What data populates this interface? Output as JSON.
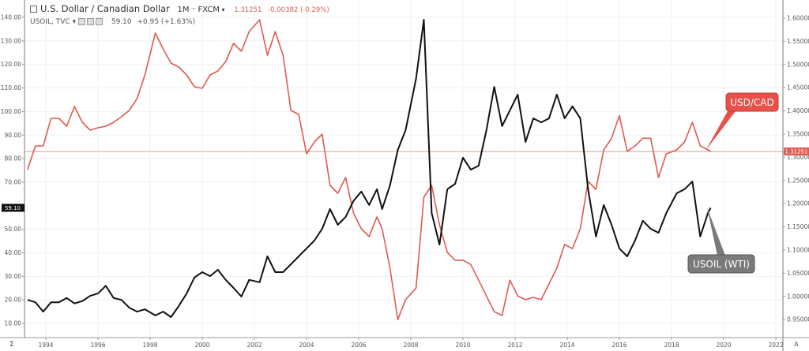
{
  "header": {
    "symbol_title": "U.S. Dollar / Canadian Dollar",
    "interval": "1M",
    "source": "FXCM",
    "price": "1.31251",
    "change": "-0.00382 (-0.29%)",
    "overlay_symbol": "USOIL, TVC",
    "overlay_price": "59.10",
    "overlay_change": "+0.95 (+1.63%)"
  },
  "axis_buttons": {
    "left": "Σ",
    "right": "A"
  },
  "colors": {
    "usdcad": "#e05a4e",
    "usoil": "#111111",
    "usoil_callout": "#7a7a7a",
    "usdcad_callout": "#e8514a"
  },
  "chart_data": {
    "type": "line",
    "x_ticks": [
      "1994",
      "1996",
      "1998",
      "2000",
      "2002",
      "2004",
      "2006",
      "2008",
      "2010",
      "2012",
      "2014",
      "2016",
      "2018",
      "2020",
      "2022"
    ],
    "left_axis": {
      "ticks": [
        "140.00",
        "130.00",
        "120.00",
        "110.00",
        "100.00",
        "90.00",
        "80.00",
        "70.00",
        "50.00",
        "40.00",
        "30.00",
        "20.00",
        "10.00"
      ],
      "range": [
        7,
        142
      ],
      "last_value_label": "59.10"
    },
    "right_axis": {
      "ticks": [
        "1.60000",
        "1.55000",
        "1.50000",
        "1.45000",
        "1.40000",
        "1.35000",
        "1.30000",
        "1.25000",
        "1.20000",
        "1.15000",
        "1.10000",
        "1.05000",
        "1.00000",
        "0.95000"
      ],
      "range": [
        0.91,
        1.615
      ],
      "last_value_label": "1.31251"
    },
    "grid": true,
    "x": [
      1993.3,
      1993.6,
      1993.9,
      1994.2,
      1994.5,
      1994.8,
      1995.1,
      1995.4,
      1995.7,
      1996.0,
      1996.3,
      1996.6,
      1996.9,
      1997.2,
      1997.5,
      1997.8,
      1998.2,
      1998.5,
      1998.8,
      1999.1,
      1999.4,
      1999.7,
      2000.0,
      2000.3,
      2000.6,
      2000.9,
      2001.2,
      2001.5,
      2001.8,
      2002.2,
      2002.5,
      2002.8,
      2003.1,
      2003.4,
      2003.7,
      2004.0,
      2004.3,
      2004.6,
      2004.9,
      2005.2,
      2005.5,
      2005.8,
      2006.1,
      2006.4,
      2006.7,
      2006.9,
      2007.2,
      2007.5,
      2007.8,
      2008.2,
      2008.5,
      2008.8,
      2009.1,
      2009.4,
      2009.7,
      2010.0,
      2010.3,
      2010.6,
      2010.9,
      2011.2,
      2011.5,
      2011.8,
      2012.1,
      2012.4,
      2012.7,
      2013.0,
      2013.3,
      2013.6,
      2013.9,
      2014.2,
      2014.5,
      2014.8,
      2015.1,
      2015.4,
      2015.7,
      2016.0,
      2016.3,
      2016.6,
      2016.9,
      2017.2,
      2017.5,
      2017.8,
      2018.2,
      2018.5,
      2018.8,
      2019.1,
      2019.4,
      2019.5
    ],
    "series": [
      {
        "name": "USD/CAD",
        "axis": "right",
        "values": [
          1.2735,
          1.3245,
          1.3245,
          1.384,
          1.384,
          1.367,
          1.4095,
          1.3755,
          1.3585,
          1.3636,
          1.367,
          1.3755,
          1.3874,
          1.401,
          1.4265,
          1.4776,
          1.5677,
          1.5337,
          1.5031,
          1.4946,
          1.4776,
          1.452,
          1.4486,
          1.4776,
          1.486,
          1.5065,
          1.5456,
          1.5286,
          1.5711,
          1.5966,
          1.52,
          1.571,
          1.52,
          1.401,
          1.3925,
          1.3075,
          1.333,
          1.35,
          1.2395,
          1.2225,
          1.2565,
          1.18,
          1.146,
          1.129,
          1.1715,
          1.146,
          1.061,
          0.95,
          0.993,
          1.018,
          1.214,
          1.2395,
          1.1545,
          1.095,
          1.078,
          1.078,
          1.069,
          1.035,
          1.001,
          0.967,
          0.959,
          1.035,
          1.001,
          0.993,
          0.998,
          0.993,
          1.027,
          1.061,
          1.112,
          1.103,
          1.146,
          1.248,
          1.231,
          1.316,
          1.341,
          1.39,
          1.313,
          1.3245,
          1.341,
          1.341,
          1.2565,
          1.3075,
          1.316,
          1.333,
          1.3755,
          1.3245,
          1.316,
          1.3125
        ]
      },
      {
        "name": "USOIL (WTI)",
        "axis": "left",
        "values": [
          20.0,
          19.0,
          15.0,
          19.0,
          19.0,
          20.8,
          18.5,
          19.5,
          21.7,
          22.7,
          26.0,
          20.8,
          20.0,
          16.7,
          15.0,
          16.0,
          13.4,
          15.0,
          12.7,
          17.4,
          22.7,
          29.5,
          31.8,
          30.1,
          32.8,
          28.5,
          25.1,
          21.4,
          28.5,
          27.5,
          38.5,
          31.8,
          31.8,
          35.1,
          38.5,
          41.8,
          45.2,
          50.2,
          58.6,
          51.9,
          55.2,
          62.0,
          66.0,
          60.3,
          67.0,
          58.6,
          68.6,
          83.7,
          92.1,
          113.9,
          139.0,
          56.9,
          43.5,
          67.0,
          69.3,
          80.4,
          75.3,
          77.0,
          92.1,
          110.5,
          93.8,
          100.5,
          107.2,
          87.1,
          97.1,
          95.4,
          97.1,
          107.2,
          97.1,
          102.2,
          97.1,
          67.0,
          46.9,
          60.3,
          51.9,
          41.8,
          38.5,
          45.2,
          53.6,
          50.2,
          48.5,
          56.9,
          65.3,
          67.0,
          70.3,
          46.9,
          57.0,
          59.1
        ]
      }
    ],
    "annotations": [
      "USD/CAD",
      "USOIL (WTI)"
    ]
  }
}
